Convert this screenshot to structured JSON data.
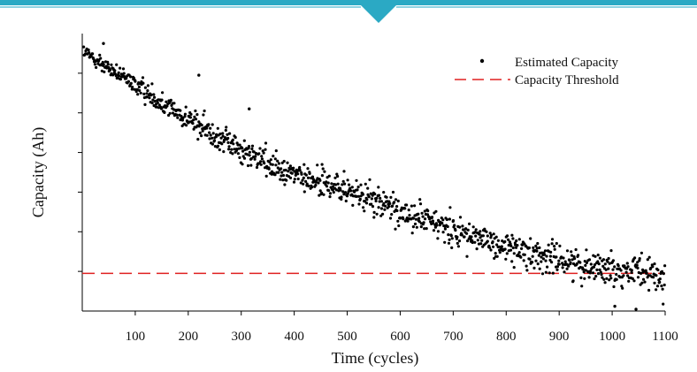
{
  "chart_data": {
    "type": "scatter",
    "title": "",
    "xlabel": "Time (cycles)",
    "ylabel": "Capacity (Ah)",
    "xlim": [
      0,
      1100
    ],
    "ylim": [
      0,
      7
    ],
    "xticks": [
      100,
      200,
      300,
      400,
      500,
      600,
      700,
      800,
      900,
      1000,
      1100
    ],
    "xtick_labels": [
      "100",
      "200",
      "300",
      "400",
      "500",
      "600",
      "700",
      "800",
      "900",
      "1000",
      "1100"
    ],
    "ytick_values": [
      1,
      2,
      3,
      4,
      5,
      6
    ],
    "ytick_labels_shown": false,
    "grid": false,
    "legend": {
      "position": "top-right",
      "entries": [
        "Estimated Capacity",
        "Capacity Threshold"
      ]
    },
    "series": [
      {
        "name": "Estimated Capacity",
        "kind": "points",
        "color": "#000000",
        "n_points": 1100,
        "trend_x": [
          0,
          100,
          200,
          300,
          400,
          500,
          600,
          700,
          800,
          900,
          1000,
          1100
        ],
        "trend_y": [
          6.55,
          5.7,
          4.85,
          4.05,
          3.45,
          3.05,
          2.5,
          2.05,
          1.6,
          1.3,
          1.05,
          0.85
        ],
        "spread": 0.25,
        "notable_points": [
          {
            "x": 40,
            "y": 6.75
          },
          {
            "x": 220,
            "y": 5.95
          },
          {
            "x": 315,
            "y": 5.1
          },
          {
            "x": 1005,
            "y": 0.12
          },
          {
            "x": 1045,
            "y": 0.0
          }
        ]
      },
      {
        "name": "Capacity Threshold",
        "kind": "dashed-line",
        "color": "#e02020",
        "y": 0.95
      }
    ]
  }
}
